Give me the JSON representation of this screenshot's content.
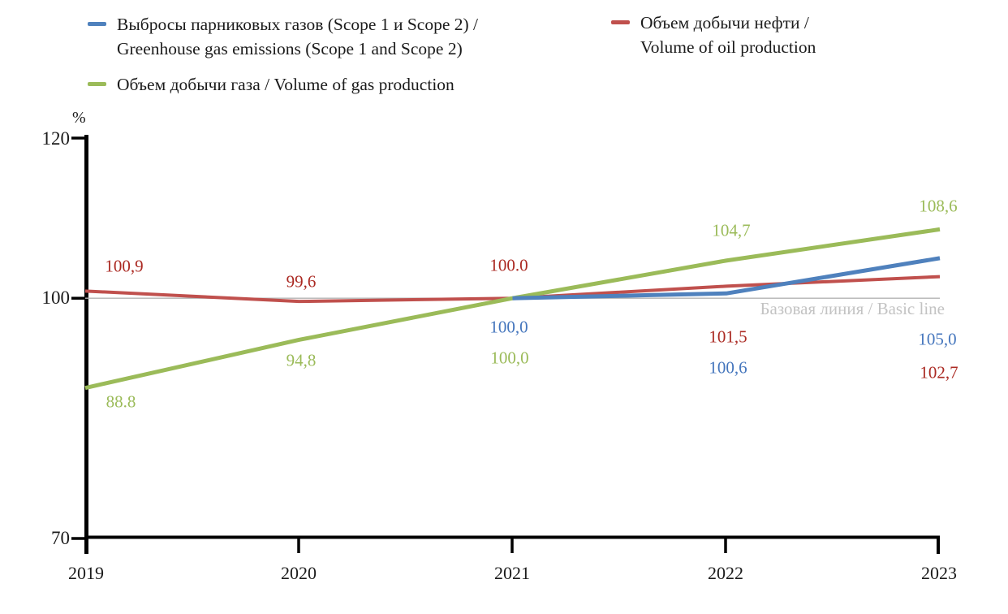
{
  "chart_data": {
    "type": "line",
    "title": "",
    "unit": "%",
    "x_labels": [
      "2019",
      "2020",
      "2021",
      "2022",
      "2023"
    ],
    "x_values": [
      2019,
      2020,
      2021,
      2022,
      2023
    ],
    "y_ticks": [
      "120",
      "100",
      "70"
    ],
    "y_tick_values": [
      120,
      100,
      70
    ],
    "ylim": [
      70,
      120
    ],
    "grid": "off",
    "legend_position": "top",
    "baseline": {
      "value": 100,
      "label": "Базовая линия / Basic line",
      "text_color": "#c3c3c3",
      "line_color": "#b3b3b3"
    },
    "series": [
      {
        "key": "oil",
        "name": "Объем добычи нефти / Volume of oil production",
        "color": "#c0504d",
        "label_color": "#ab2a23",
        "values": [
          100.9,
          99.6,
          100.0,
          101.5,
          102.7
        ],
        "labels": [
          "100,9",
          "99,6",
          "100.0",
          "101,5",
          "102,7"
        ]
      },
      {
        "key": "gas",
        "name": "Объем добычи газа / Volume of gas production",
        "color": "#9bbb59",
        "label_color": "#9bbb59",
        "values": [
          88.8,
          94.8,
          100.0,
          104.7,
          108.6
        ],
        "labels": [
          "88.8",
          "94,8",
          "100,0",
          "104,7",
          "108,6"
        ]
      },
      {
        "key": "emissions",
        "name": "Выбросы парниковых газов (Scope 1 и Scope 2) / Greenhouse gas emissions (Scope 1 and Scope 2)",
        "color": "#4f81bd",
        "label_color": "#4576bd",
        "values": [
          null,
          null,
          100.0,
          100.6,
          105.0
        ],
        "labels": [
          null,
          null,
          "100,0",
          "100,6",
          "105,0"
        ]
      }
    ]
  },
  "legend": {
    "emissions_line1": "Выбросы парниковых газов (Scope 1 и Scope 2) /",
    "emissions_line2": "Greenhouse gas emissions (Scope 1 and Scope 2)",
    "oil_line1": "Объем добычи нефти /",
    "oil_line2": "Volume of oil production",
    "gas_line1": "Объем добычи газа / Volume of gas production"
  }
}
